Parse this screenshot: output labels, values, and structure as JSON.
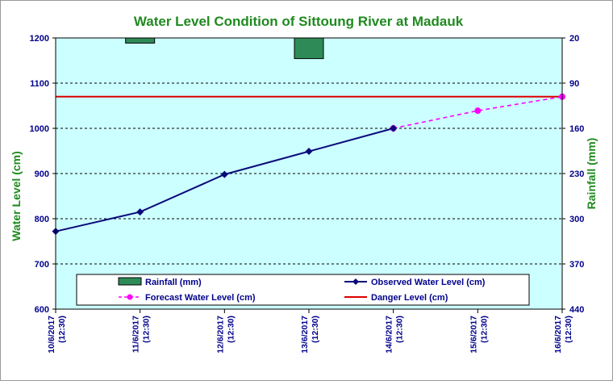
{
  "chart_data": {
    "type": "line",
    "title": "Water Level Condition of Sittoung River at  Madauk",
    "ylabel_left": "Water  Level (cm)",
    "ylabel_right": "Rainfall (mm)",
    "ylim_left": [
      600,
      1200
    ],
    "yticks_left": [
      "600",
      "700",
      "800",
      "900",
      "1000",
      "1100",
      "1200"
    ],
    "ylim_right_top_to_bottom": [
      20,
      440
    ],
    "yticks_right": [
      "20",
      "90",
      "160",
      "230",
      "300",
      "370",
      "440"
    ],
    "categories": [
      {
        "date": "10/6/2017",
        "time": "(12:30)"
      },
      {
        "date": "11/6/2017",
        "time": "(12:30)"
      },
      {
        "date": "12/6/2017",
        "time": "(12:30)"
      },
      {
        "date": "13/6/2017",
        "time": "(12:30)"
      },
      {
        "date": "14/6/2017",
        "time": "(12:30)"
      },
      {
        "date": "15/6/2017",
        "time": "(12:30)"
      },
      {
        "date": "16/6/2017",
        "time": "(12:30)"
      }
    ],
    "series": [
      {
        "name": "Rainfall (mm)",
        "kind": "bar",
        "axis": "right",
        "color": "#2e8b57",
        "values": [
          12,
          28,
          19,
          52,
          19,
          null,
          null
        ]
      },
      {
        "name": "Observed Water Level (cm)",
        "kind": "line",
        "axis": "left",
        "color": "#0a0a7a",
        "values": [
          772,
          815,
          898,
          949,
          1000,
          null,
          null
        ]
      },
      {
        "name": "Forecast Water Level (cm)",
        "kind": "dashed-line",
        "axis": "left",
        "color": "#ff00ff",
        "values": [
          null,
          null,
          null,
          null,
          1000,
          1039,
          1070
        ]
      },
      {
        "name": "Danger Level (cm)",
        "kind": "hline",
        "axis": "left",
        "color": "#dd0000",
        "value": 1070
      }
    ],
    "colors": {
      "plot_background": "#ccffff",
      "title": "#1f8a1f",
      "axis_text": "#00008b",
      "axis_label": "#1f8a1f"
    },
    "legend_position": "bottom-inside"
  }
}
